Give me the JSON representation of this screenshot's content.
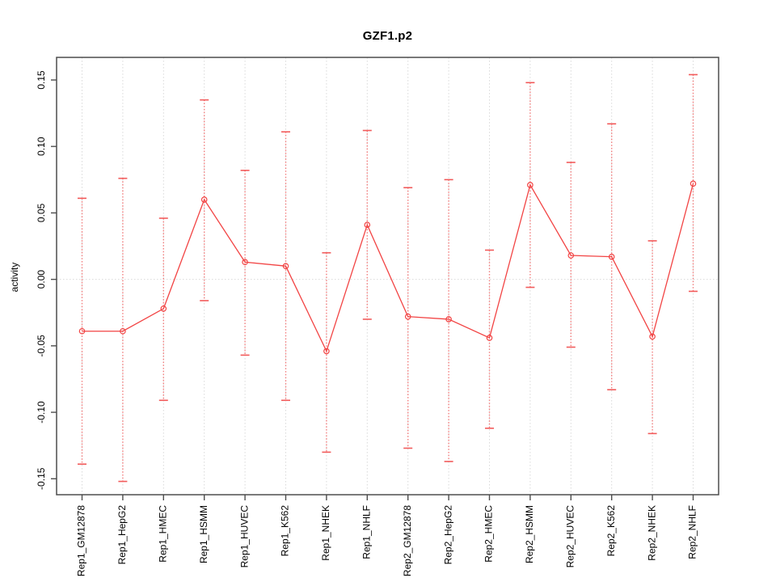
{
  "figure": {
    "title": "GZF1.p2",
    "y_axis_title": "activity"
  },
  "chart_data": {
    "type": "line",
    "title": "GZF1.p2",
    "xlabel": "",
    "ylabel": "activity",
    "ylim": [
      -0.162,
      0.167
    ],
    "grid": "vertical dotted gridline at each category; horizontal dotted line at y=0; full box frame; ticks outside",
    "legend_position": "none",
    "point_style": "open-circle",
    "error_bars": true,
    "x_tick_rotation_deg": 90,
    "y_tick_rotation_deg": 90,
    "yticks": [
      -0.15,
      -0.1,
      -0.05,
      0.0,
      0.05,
      0.1,
      0.15
    ],
    "ytick_labels": [
      "-0.15",
      "-0.10",
      "-0.05",
      "0.00",
      "0.05",
      "0.10",
      "0.15"
    ],
    "categories": [
      "Rep1_GM12878",
      "Rep1_HepG2",
      "Rep1_HMEC",
      "Rep1_HSMM",
      "Rep1_HUVEC",
      "Rep1_K562",
      "Rep1_NHEK",
      "Rep1_NHLF",
      "Rep2_GM12878",
      "Rep2_HepG2",
      "Rep2_HMEC",
      "Rep2_HSMM",
      "Rep2_HUVEC",
      "Rep2_K562",
      "Rep2_NHEK",
      "Rep2_NHLF"
    ],
    "series": [
      {
        "name": "activity",
        "values": [
          -0.039,
          -0.039,
          -0.022,
          0.06,
          0.013,
          0.01,
          -0.054,
          0.041,
          -0.028,
          -0.03,
          -0.044,
          0.071,
          0.018,
          0.017,
          -0.043,
          0.072
        ],
        "error_upper": [
          0.061,
          0.076,
          0.046,
          0.135,
          0.082,
          0.111,
          0.02,
          0.112,
          0.069,
          0.075,
          0.022,
          0.148,
          0.088,
          0.117,
          0.029,
          0.154
        ],
        "error_lower": [
          -0.139,
          -0.152,
          -0.091,
          -0.016,
          -0.057,
          -0.091,
          -0.13,
          -0.03,
          -0.127,
          -0.137,
          -0.112,
          -0.006,
          -0.051,
          -0.083,
          -0.116,
          -0.009
        ]
      }
    ],
    "colors": {
      "line": "#f24444",
      "point": "#f24444",
      "error_bar": "#f58080",
      "error_cap": "#f25c5c",
      "gridline": "#d9d9d9",
      "zero_line": "#d9d9d9",
      "frame": "#4d4d4d",
      "tick": "#4d4d4d",
      "text": "#000000"
    }
  }
}
